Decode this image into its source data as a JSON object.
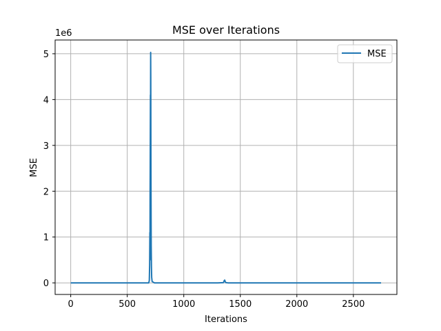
{
  "chart_data": {
    "type": "line",
    "title": "MSE over Iterations",
    "xlabel": "Iterations",
    "ylabel": "MSE",
    "y_offset_label": "1e6",
    "xlim": [
      -138,
      2885
    ],
    "ylim": [
      -0.253,
      5.3
    ],
    "x_ticks": [
      0,
      500,
      1000,
      1500,
      2000,
      2500
    ],
    "x_tick_labels": [
      "0",
      "500",
      "1000",
      "1500",
      "2000",
      "2500"
    ],
    "y_ticks": [
      0,
      1,
      2,
      3,
      4,
      5
    ],
    "y_tick_labels": [
      "0",
      "1",
      "2",
      "3",
      "4",
      "5"
    ],
    "grid": true,
    "legend": {
      "position": "top-right",
      "entries": [
        "MSE"
      ]
    },
    "series": [
      {
        "name": "MSE",
        "color": "#1f77b4",
        "x": [
          0,
          500,
          690,
          695,
          698,
          700,
          701,
          702,
          703,
          704,
          705,
          706,
          707,
          708,
          709,
          710,
          711,
          712,
          714,
          716,
          720,
          740,
          900,
          1300,
          1350,
          1358,
          1362,
          1366,
          1370,
          1375,
          1390,
          1500,
          2000,
          2500,
          2745
        ],
        "values": [
          0.0,
          0.0,
          0.0,
          0.05,
          0.4,
          1.1,
          0.5,
          1.9,
          2.5,
          3.3,
          4.1,
          3.6,
          5.03,
          4.5,
          3.1,
          2.2,
          1.4,
          0.8,
          0.35,
          0.12,
          0.03,
          0.0,
          0.0,
          0.0,
          0.005,
          0.05,
          0.06,
          0.03,
          0.01,
          0.005,
          0.0,
          0.0,
          0.0,
          0.0,
          0.0
        ]
      }
    ]
  }
}
